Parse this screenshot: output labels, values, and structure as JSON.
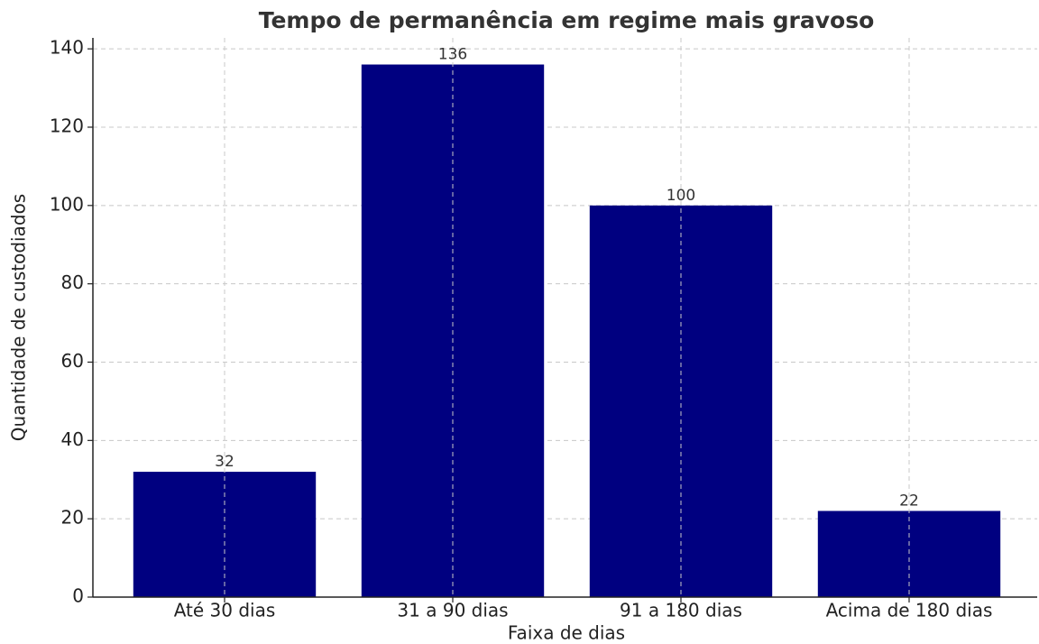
{
  "chart_data": {
    "type": "bar",
    "title": "Tempo de permanência em regime mais gravoso",
    "x_label": "Faixa de dias",
    "y_label": "Quantidade de custodiados",
    "categories": [
      "Até 30 dias",
      "31 a 90 dias",
      "91 a 180 dias",
      "Acima de 180 dias"
    ],
    "values": [
      32,
      136,
      100,
      22
    ],
    "color": "#000080",
    "ylim": [
      0,
      142.8
    ],
    "yticks": [
      0,
      20,
      40,
      60,
      80,
      100,
      120,
      140
    ],
    "grid": true
  }
}
